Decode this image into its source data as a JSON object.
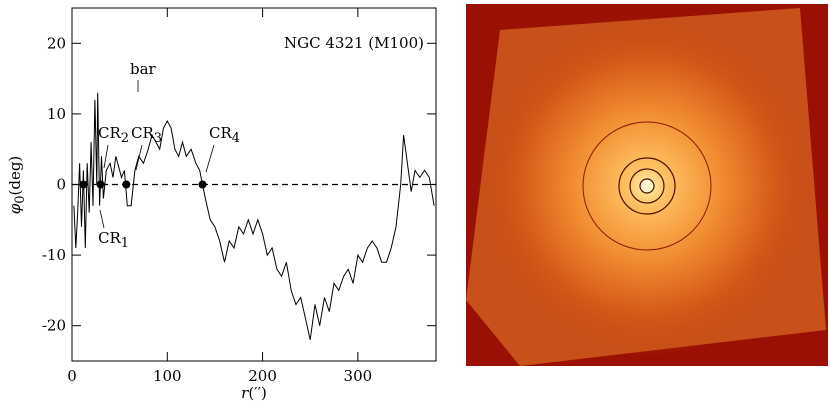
{
  "chart_data": {
    "type": "line",
    "title": "NGC 4321 (M100)",
    "xlabel": [
      "r",
      "(′′)"
    ],
    "ylabel": [
      "φ",
      "0",
      "(deg)"
    ],
    "x": [
      2,
      4,
      6,
      8,
      10,
      12,
      14,
      16,
      18,
      20,
      22,
      24,
      26,
      27,
      29,
      31,
      33,
      36,
      40,
      43,
      46,
      48,
      52,
      55,
      58,
      62,
      66,
      70,
      75,
      80,
      84,
      88,
      92,
      96,
      100,
      104,
      108,
      112,
      116,
      120,
      125,
      130,
      134,
      137,
      140,
      145,
      150,
      155,
      160,
      165,
      170,
      175,
      180,
      185,
      190,
      195,
      200,
      205,
      210,
      215,
      220,
      225,
      230,
      235,
      240,
      245,
      250,
      255,
      260,
      265,
      270,
      275,
      280,
      285,
      290,
      295,
      300,
      305,
      310,
      315,
      320,
      325,
      330,
      335,
      340,
      345,
      348,
      352,
      356,
      360,
      365,
      370,
      375,
      380
    ],
    "values": [
      -3,
      -9,
      -4,
      3,
      -6,
      2,
      -9,
      3,
      -4,
      6,
      -3,
      12,
      0,
      13,
      -3,
      4,
      -2,
      2,
      3,
      1,
      4,
      3,
      1,
      2,
      -3,
      -3,
      2,
      4,
      3,
      5,
      7,
      6,
      5,
      8,
      9,
      8,
      5,
      4,
      6,
      4,
      5,
      3,
      2,
      0,
      -2,
      -5,
      -6,
      -8,
      -11,
      -8,
      -9,
      -6,
      -7,
      -5,
      -7,
      -5,
      -7,
      -10,
      -9,
      -12,
      -13,
      -11,
      -15,
      -17,
      -16,
      -19,
      -22,
      -17,
      -20,
      -16,
      -18,
      -14,
      -15,
      -13,
      -12,
      -14,
      -10,
      -11,
      -9,
      -8,
      -9,
      -11,
      -11,
      -9,
      -6,
      0,
      7,
      3,
      -1,
      2,
      1,
      2,
      1,
      -3
    ],
    "color": "#000000",
    "markers": {
      "x": [
        12,
        30,
        57,
        137
      ],
      "values": [
        0,
        0,
        0,
        0
      ]
    },
    "reference_line": 0,
    "annotations": [
      {
        "text": "bar"
      },
      {
        "text": "CR",
        "sub": "2"
      },
      {
        "text": "CR",
        "sub": "3"
      },
      {
        "text": "CR",
        "sub": "4"
      },
      {
        "text": "CR",
        "sub": "1"
      }
    ],
    "xlim": [
      0,
      382
    ],
    "xticks": [
      0,
      100,
      200,
      300
    ],
    "ylim": [
      -25,
      25
    ],
    "yticks": [
      -20,
      -10,
      0,
      10,
      20
    ]
  }
}
